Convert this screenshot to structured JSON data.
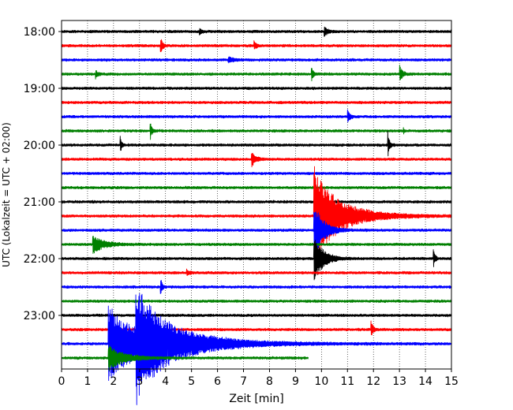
{
  "chart_data": {
    "type": "line",
    "title": "",
    "xlabel": "Zeit  [min]",
    "ylabel": "UTC (Lokalzeit = UTC + 02:00)",
    "xlim": [
      0,
      15
    ],
    "x_ticks": [
      0,
      1,
      2,
      3,
      4,
      5,
      6,
      7,
      8,
      9,
      10,
      11,
      12,
      13,
      14,
      15
    ],
    "x_tick_labels": [
      "0",
      "1",
      "2",
      "3",
      "4",
      "5",
      "6",
      "7",
      "8",
      "9",
      "10",
      "11",
      "12",
      "13",
      "14",
      "15"
    ],
    "y_tick_labels": [
      "18:00",
      "19:00",
      "20:00",
      "21:00",
      "22:00",
      "23:00"
    ],
    "y_tick_row_index": [
      0,
      4,
      8,
      12,
      16,
      20
    ],
    "grid": "vertical dotted",
    "row_colors": [
      "#000000",
      "#ff0000",
      "#0000ff",
      "#008000"
    ],
    "noise_amplitude": 0.06,
    "row_end_minutes": [
      15,
      15,
      15,
      15,
      15,
      15,
      15,
      15,
      15,
      15,
      15,
      15,
      15,
      15,
      15,
      15,
      15,
      15,
      15,
      15,
      15,
      15,
      15,
      9.5
    ],
    "events": [
      {
        "row": 0,
        "t": 5.3,
        "amp": 0.15,
        "dur": 0.2
      },
      {
        "row": 0,
        "t": 10.1,
        "amp": 0.2,
        "dur": 0.3
      },
      {
        "row": 1,
        "t": 3.8,
        "amp": 0.35,
        "dur": 0.2
      },
      {
        "row": 1,
        "t": 7.4,
        "amp": 0.18,
        "dur": 0.2
      },
      {
        "row": 2,
        "t": 6.4,
        "amp": 0.12,
        "dur": 0.5
      },
      {
        "row": 3,
        "t": 1.3,
        "amp": 0.2,
        "dur": 0.2
      },
      {
        "row": 3,
        "t": 9.6,
        "amp": 0.35,
        "dur": 0.15
      },
      {
        "row": 3,
        "t": 13.0,
        "amp": 0.35,
        "dur": 0.25
      },
      {
        "row": 6,
        "t": 11.0,
        "amp": 0.3,
        "dur": 0.2
      },
      {
        "row": 7,
        "t": 3.4,
        "amp": 0.4,
        "dur": 0.15
      },
      {
        "row": 7,
        "t": 13.15,
        "amp": 0.12,
        "dur": 0.1
      },
      {
        "row": 8,
        "t": 2.25,
        "amp": 0.35,
        "dur": 0.15
      },
      {
        "row": 8,
        "t": 12.55,
        "amp": 0.55,
        "dur": 0.15
      },
      {
        "row": 9,
        "t": 7.3,
        "amp": 0.3,
        "dur": 0.35
      },
      {
        "row": 13,
        "t": 9.7,
        "amp": 2.0,
        "dur": 4.5
      },
      {
        "row": 14,
        "t": 9.7,
        "amp": 1.2,
        "dur": 0.8
      },
      {
        "row": 15,
        "t": 1.2,
        "amp": 0.35,
        "dur": 1.0
      },
      {
        "row": 16,
        "t": 9.7,
        "amp": 1.0,
        "dur": 0.8
      },
      {
        "row": 16,
        "t": 14.3,
        "amp": 0.4,
        "dur": 0.15
      },
      {
        "row": 17,
        "t": 4.8,
        "amp": 0.12,
        "dur": 0.3
      },
      {
        "row": 18,
        "t": 3.8,
        "amp": 0.4,
        "dur": 0.15
      },
      {
        "row": 21,
        "t": 11.9,
        "amp": 0.35,
        "dur": 0.2
      },
      {
        "row": 22,
        "t": 1.8,
        "amp": 1.45,
        "dur": 8.0
      },
      {
        "row": 22,
        "t": 2.85,
        "amp": 1.8,
        "dur": 6.0
      },
      {
        "row": 23,
        "t": 1.8,
        "amp": 0.5,
        "dur": 2.5
      }
    ]
  }
}
